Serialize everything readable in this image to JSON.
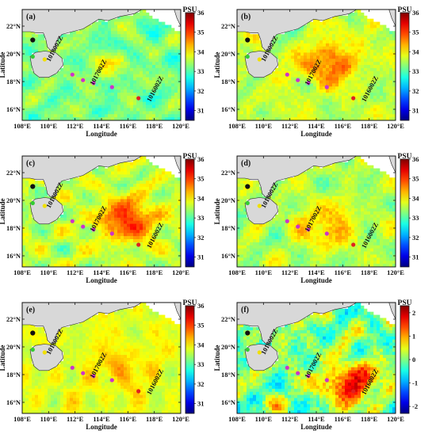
{
  "chart_data": [
    {
      "type": "heatmap",
      "panel_label": "(a)",
      "xlabel": "Longitude",
      "ylabel": "Latitude",
      "x_ticks": [
        "108°E",
        "110°E",
        "112°E",
        "114°E",
        "116°E",
        "118°E",
        "120°E"
      ],
      "y_ticks": [
        "16°N",
        "18°N",
        "20°N",
        "22°N"
      ],
      "xlim": [
        108,
        120
      ],
      "ylim": [
        15.2,
        23.2
      ],
      "colorbar": {
        "label": "PSU",
        "ticks": [
          "36",
          "35",
          "34",
          "33",
          "32",
          "31"
        ],
        "min": 30.5,
        "max": 36,
        "palette": "jet"
      },
      "field": {
        "base": 33.2,
        "hot_lon": 114.5,
        "hot_lat": 19.2,
        "hot_amp": 0.4,
        "noise": 0.7,
        "seed": 1
      },
      "stations": [
        {
          "lon": 108.8,
          "lat": 21.0,
          "color": "#111111"
        },
        {
          "lon": 108.8,
          "lat": 19.8,
          "color": "#33cc33"
        },
        {
          "lon": 109.7,
          "lat": 19.6,
          "color": "#f0e000"
        },
        {
          "lon": 111.8,
          "lat": 18.5,
          "color": "#cc33cc"
        },
        {
          "lon": 112.6,
          "lat": 18.1,
          "color": "#cc33cc"
        },
        {
          "lon": 113.4,
          "lat": 17.9,
          "color": "#cc33cc"
        },
        {
          "lon": 114.8,
          "lat": 17.6,
          "color": "#cc33cc"
        },
        {
          "lon": 116.8,
          "lat": 16.8,
          "color": "#e02020"
        }
      ],
      "station_labels": [
        {
          "text": "1018002Z",
          "lon": 110.6,
          "lat": 20.3
        },
        {
          "text": "1017002Z",
          "lon": 113.9,
          "lat": 18.6
        },
        {
          "text": "1016002Z",
          "lon": 118.2,
          "lat": 17.4
        }
      ]
    },
    {
      "type": "heatmap",
      "panel_label": "(b)",
      "xlabel": "Longitude",
      "ylabel": "Latitude",
      "x_ticks": [
        "108°E",
        "110°E",
        "112°E",
        "114°E",
        "116°E",
        "118°E",
        "120°E"
      ],
      "y_ticks": [
        "16°N",
        "18°N",
        "20°N",
        "22°N"
      ],
      "xlim": [
        108,
        120
      ],
      "ylim": [
        15.2,
        23.2
      ],
      "colorbar": {
        "label": "PSU",
        "ticks": [
          "36",
          "35",
          "34",
          "33",
          "32",
          "31"
        ],
        "min": 30.5,
        "max": 36,
        "palette": "jet"
      },
      "field": {
        "base": 33.6,
        "hot_lon": 115.0,
        "hot_lat": 19.3,
        "hot_amp": 1.3,
        "noise": 0.7,
        "seed": 2
      },
      "stations": [
        {
          "lon": 108.8,
          "lat": 21.0,
          "color": "#111111"
        },
        {
          "lon": 108.8,
          "lat": 19.8,
          "color": "#33cc33"
        },
        {
          "lon": 109.7,
          "lat": 19.6,
          "color": "#f0e000"
        },
        {
          "lon": 111.8,
          "lat": 18.5,
          "color": "#cc33cc"
        },
        {
          "lon": 112.6,
          "lat": 18.1,
          "color": "#cc33cc"
        },
        {
          "lon": 113.4,
          "lat": 17.9,
          "color": "#cc33cc"
        },
        {
          "lon": 114.8,
          "lat": 17.6,
          "color": "#cc33cc"
        },
        {
          "lon": 116.8,
          "lat": 16.8,
          "color": "#e02020"
        }
      ],
      "station_labels": [
        {
          "text": "1018002Z",
          "lon": 110.6,
          "lat": 20.3
        },
        {
          "text": "1017002Z",
          "lon": 113.9,
          "lat": 18.6
        },
        {
          "text": "1016002Z",
          "lon": 118.2,
          "lat": 17.4
        }
      ]
    },
    {
      "type": "heatmap",
      "panel_label": "(c)",
      "xlabel": "Longitude",
      "ylabel": "Latitude",
      "x_ticks": [
        "108°E",
        "110°E",
        "112°E",
        "114°E",
        "116°E",
        "118°E",
        "120°E"
      ],
      "y_ticks": [
        "16°N",
        "18°N",
        "20°N",
        "22°N"
      ],
      "xlim": [
        108,
        120
      ],
      "ylim": [
        15.2,
        23.2
      ],
      "colorbar": {
        "label": "PSU",
        "ticks": [
          "36",
          "35",
          "34",
          "33",
          "32",
          "31"
        ],
        "min": 30.5,
        "max": 36,
        "palette": "jet"
      },
      "field": {
        "base": 33.6,
        "hot_lon": 116.0,
        "hot_lat": 18.6,
        "hot_amp": 1.6,
        "noise": 0.7,
        "seed": 3
      },
      "stations": [
        {
          "lon": 108.8,
          "lat": 21.0,
          "color": "#111111"
        },
        {
          "lon": 108.8,
          "lat": 19.8,
          "color": "#33cc33"
        },
        {
          "lon": 109.7,
          "lat": 19.6,
          "color": "#f0e000"
        },
        {
          "lon": 111.8,
          "lat": 18.5,
          "color": "#cc33cc"
        },
        {
          "lon": 112.6,
          "lat": 18.1,
          "color": "#cc33cc"
        },
        {
          "lon": 113.4,
          "lat": 17.9,
          "color": "#cc33cc"
        },
        {
          "lon": 114.8,
          "lat": 17.6,
          "color": "#cc33cc"
        },
        {
          "lon": 116.8,
          "lat": 16.8,
          "color": "#e02020"
        }
      ],
      "station_labels": [
        {
          "text": "1018002Z",
          "lon": 110.6,
          "lat": 20.3
        },
        {
          "text": "1017002Z",
          "lon": 113.9,
          "lat": 18.6
        },
        {
          "text": "1016002Z",
          "lon": 118.2,
          "lat": 17.4
        }
      ]
    },
    {
      "type": "heatmap",
      "panel_label": "(d)",
      "xlabel": "Longitude",
      "ylabel": "Latitude",
      "x_ticks": [
        "108°E",
        "110°E",
        "112°E",
        "114°E",
        "116°E",
        "118°E",
        "120°E"
      ],
      "y_ticks": [
        "16°N",
        "18°N",
        "20°N",
        "22°N"
      ],
      "xlim": [
        108,
        120
      ],
      "ylim": [
        15.2,
        23.2
      ],
      "colorbar": {
        "label": "PSU",
        "ticks": [
          "36",
          "35",
          "34",
          "33",
          "32",
          "31"
        ],
        "min": 30.5,
        "max": 36,
        "palette": "jet"
      },
      "field": {
        "base": 33.5,
        "hot_lon": 114.8,
        "hot_lat": 18.2,
        "hot_amp": 1.0,
        "noise": 0.75,
        "seed": 4
      },
      "stations": [
        {
          "lon": 108.8,
          "lat": 21.0,
          "color": "#111111"
        },
        {
          "lon": 108.8,
          "lat": 19.8,
          "color": "#33cc33"
        },
        {
          "lon": 109.7,
          "lat": 19.6,
          "color": "#f0e000"
        },
        {
          "lon": 111.8,
          "lat": 18.5,
          "color": "#cc33cc"
        },
        {
          "lon": 112.6,
          "lat": 18.1,
          "color": "#cc33cc"
        },
        {
          "lon": 113.4,
          "lat": 17.9,
          "color": "#cc33cc"
        },
        {
          "lon": 114.8,
          "lat": 17.6,
          "color": "#cc33cc"
        },
        {
          "lon": 116.8,
          "lat": 16.8,
          "color": "#e02020"
        }
      ],
      "station_labels": [
        {
          "text": "1018002Z",
          "lon": 110.6,
          "lat": 20.3
        },
        {
          "text": "1017002Z",
          "lon": 113.9,
          "lat": 18.6
        },
        {
          "text": "1016002Z",
          "lon": 118.2,
          "lat": 17.4
        }
      ]
    },
    {
      "type": "heatmap",
      "panel_label": "(e)",
      "xlabel": "Longitude",
      "ylabel": "Latitude",
      "x_ticks": [
        "108°E",
        "110°E",
        "112°E",
        "114°E",
        "116°E",
        "118°E",
        "120°E"
      ],
      "y_ticks": [
        "16°N",
        "18°N",
        "20°N",
        "22°N"
      ],
      "xlim": [
        108,
        120
      ],
      "ylim": [
        15.2,
        23.2
      ],
      "colorbar": {
        "label": "PSU",
        "ticks": [
          "36",
          "35",
          "34",
          "33",
          "32",
          "31"
        ],
        "min": 30.5,
        "max": 36,
        "palette": "jet"
      },
      "field": {
        "base": 33.8,
        "hot_lon": 115.5,
        "hot_lat": 18.5,
        "hot_amp": 0.5,
        "noise": 0.5,
        "seed": 5
      },
      "stations": [
        {
          "lon": 108.8,
          "lat": 21.0,
          "color": "#111111"
        },
        {
          "lon": 108.8,
          "lat": 19.8,
          "color": "#33cc33"
        },
        {
          "lon": 109.7,
          "lat": 19.6,
          "color": "#f0e000"
        },
        {
          "lon": 111.8,
          "lat": 18.5,
          "color": "#cc33cc"
        },
        {
          "lon": 112.6,
          "lat": 18.1,
          "color": "#cc33cc"
        },
        {
          "lon": 113.4,
          "lat": 17.9,
          "color": "#cc33cc"
        },
        {
          "lon": 114.8,
          "lat": 17.6,
          "color": "#cc33cc"
        },
        {
          "lon": 116.8,
          "lat": 16.8,
          "color": "#e02020"
        }
      ],
      "station_labels": [
        {
          "text": "1018002Z",
          "lon": 110.6,
          "lat": 20.3
        },
        {
          "text": "1017002Z",
          "lon": 113.9,
          "lat": 18.6
        },
        {
          "text": "1016002Z",
          "lon": 118.2,
          "lat": 17.4
        }
      ]
    },
    {
      "type": "heatmap",
      "panel_label": "(f)",
      "xlabel": "Longitude",
      "ylabel": "Latitude",
      "x_ticks": [
        "108°E",
        "110°E",
        "112°E",
        "114°E",
        "116°E",
        "118°E",
        "120°E"
      ],
      "y_ticks": [
        "16°N",
        "18°N",
        "20°N",
        "22°N"
      ],
      "xlim": [
        108,
        120
      ],
      "ylim": [
        15.2,
        23.2
      ],
      "colorbar": {
        "label": "PSU",
        "ticks": [
          "2",
          "1",
          "0",
          "-1",
          "-2"
        ],
        "min": -2.3,
        "max": 2.3,
        "palette": "jet"
      },
      "field": {
        "base": 0.0,
        "hot_lon": 116.6,
        "hot_lat": 17.4,
        "hot_amp": 1.8,
        "noise": 1.1,
        "seed": 6
      },
      "stations": [
        {
          "lon": 108.8,
          "lat": 21.0,
          "color": "#111111"
        },
        {
          "lon": 108.8,
          "lat": 19.8,
          "color": "#33cc33"
        },
        {
          "lon": 109.7,
          "lat": 19.6,
          "color": "#f0e000"
        },
        {
          "lon": 111.8,
          "lat": 18.5,
          "color": "#cc33cc"
        },
        {
          "lon": 112.6,
          "lat": 18.1,
          "color": "#cc33cc"
        },
        {
          "lon": 113.4,
          "lat": 17.9,
          "color": "#cc33cc"
        },
        {
          "lon": 114.8,
          "lat": 17.6,
          "color": "#cc33cc"
        },
        {
          "lon": 116.8,
          "lat": 16.8,
          "color": "#e02020"
        }
      ],
      "station_labels": [
        {
          "text": "1018002Z",
          "lon": 110.6,
          "lat": 20.3
        },
        {
          "text": "1017002Z",
          "lon": 113.9,
          "lat": 18.6
        },
        {
          "text": "1016002Z",
          "lon": 118.2,
          "lat": 17.4
        }
      ]
    }
  ]
}
